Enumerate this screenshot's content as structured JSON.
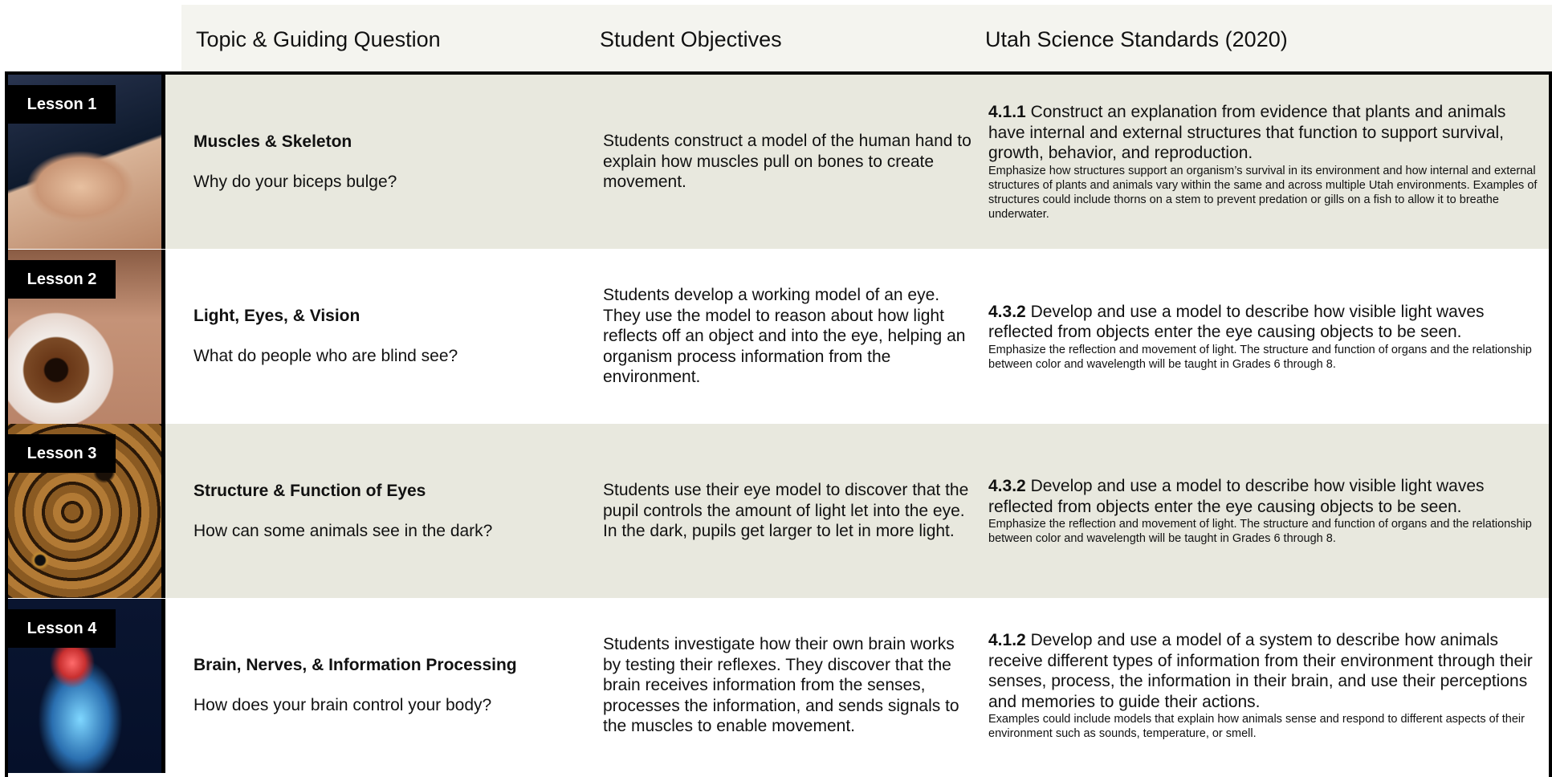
{
  "header": {
    "columns": [
      "Topic & Guiding Question",
      "Student Objectives",
      "Utah Science Standards (2020)"
    ]
  },
  "rows": [
    {
      "lesson": "Lesson 1",
      "topic": "Muscles & Skeleton",
      "question": "Why do your biceps bulge?",
      "objective": "Students construct a model of the human hand to explain how muscles pull on bones to create movement.",
      "standard_code": "4.1.1",
      "standard_text": "Construct an explanation from evidence that plants and animals have internal and external structures that function to support survival, growth, behavior, and reproduction.",
      "standard_note": "Emphasize how structures support an organism’s survival in its environment and how internal and external structures of plants and animals vary within the same and across multiple Utah environments. Examples of structures could include thorns on a stem to prevent predation or gills on a fish to allow it to breathe underwater."
    },
    {
      "lesson": "Lesson 2",
      "topic": "Light, Eyes, & Vision",
      "question": "What do people who are blind see?",
      "objective": "Students develop a working model of an eye. They use the model to reason about how light reflects off an object and into the eye, helping an organism process information from the environment.",
      "standard_code": "4.3.2",
      "standard_text": "Develop and use a model to describe how visible light waves reflected from objects enter the eye causing objects to be seen.",
      "standard_note": "Emphasize the reflection and movement of light. The structure and function of organs and the relationship between color and wavelength will be taught in Grades 6 through 8."
    },
    {
      "lesson": "Lesson 3",
      "topic": "Structure & Function of Eyes",
      "question": "How can some animals see in the dark?",
      "objective": "Students use their eye model to discover that the pupil controls the amount of light let into the eye. In the dark, pupils get larger to let in more light.",
      "standard_code": "4.3.2",
      "standard_text": "Develop and use a model to describe how visible light waves reflected from objects enter the eye causing objects to be seen.",
      "standard_note": "Emphasize the reflection and movement of light. The structure and function of organs and the relationship between color and wavelength will be taught in Grades 6 through 8."
    },
    {
      "lesson": "Lesson 4",
      "topic": "Brain, Nerves, & Information Processing",
      "question": "How does your brain control your body?",
      "objective": "Students investigate how their own brain works by testing their reflexes. They discover that the brain receives information from the senses, processes the information, and sends signals to the muscles to enable movement.",
      "standard_code": "4.1.2",
      "standard_text": "Develop and use a model of a system to describe how animals receive different types of information from their environment through their senses, process, the information in their brain, and use their perceptions and memories to guide their actions.",
      "standard_note": "Examples could include models that explain how animals sense and respond to different aspects of their environment such as sounds, temperature, or smell."
    }
  ]
}
